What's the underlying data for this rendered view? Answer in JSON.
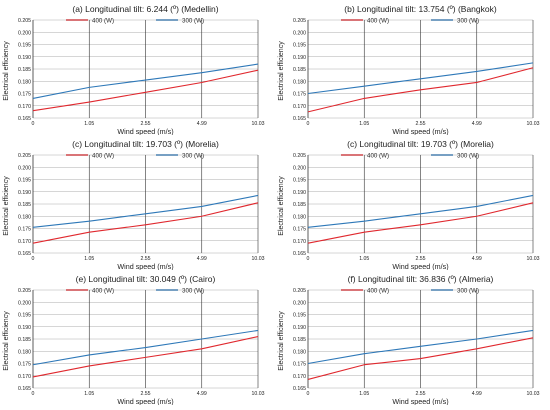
{
  "colors": {
    "s400": "#e0282e",
    "s300": "#2e78b8",
    "grid": "#333333",
    "axis": "#999999"
  },
  "chart_data": [
    {
      "type": "line",
      "title": "(a) Longitudinal tilt: 6.244 (º) (Medellin)",
      "xlabel": "Wind speed (m/s)",
      "ylabel": "Electrical efficiency",
      "categories": [
        "0",
        "1.05",
        "2.55",
        "4.99",
        "10.03"
      ],
      "ylim": [
        0.165,
        0.205
      ],
      "yticks": [
        "0.165",
        "0.170",
        "0.175",
        "0.180",
        "0.185",
        "0.190",
        "0.195",
        "0.200",
        "0.205"
      ],
      "legend_position": "top",
      "series": [
        {
          "name": "400 (W)",
          "values": [
            0.168,
            0.1715,
            0.1755,
            0.1795,
            0.1845
          ]
        },
        {
          "name": "300 (W)",
          "values": [
            0.173,
            0.1775,
            0.1805,
            0.1835,
            0.187
          ]
        }
      ]
    },
    {
      "type": "line",
      "title": "(b) Longitudinal tilt: 13.754 (º) (Bangkok)",
      "xlabel": "Wind speed (m/s)",
      "ylabel": "Electrical efficiency",
      "categories": [
        "0",
        "1.05",
        "2.55",
        "4.99",
        "10.03"
      ],
      "ylim": [
        0.165,
        0.205
      ],
      "yticks": [
        "0.165",
        "0.170",
        "0.175",
        "0.180",
        "0.185",
        "0.190",
        "0.195",
        "0.200",
        "0.205"
      ],
      "legend_position": "top",
      "series": [
        {
          "name": "400 (W)",
          "values": [
            0.1675,
            0.173,
            0.1765,
            0.1795,
            0.1855
          ]
        },
        {
          "name": "300 (W)",
          "values": [
            0.175,
            0.178,
            0.181,
            0.184,
            0.1875
          ]
        }
      ]
    },
    {
      "type": "line",
      "title": "(c) Longitudinal tilt: 19.703 (º) (Morelia)",
      "xlabel": "Wind speed (m/s)",
      "ylabel": "Electrical efficiency",
      "categories": [
        "0",
        "1.05",
        "2.55",
        "4.99",
        "10.03"
      ],
      "ylim": [
        0.165,
        0.205
      ],
      "yticks": [
        "0.165",
        "0.170",
        "0.175",
        "0.180",
        "0.185",
        "0.190",
        "0.195",
        "0.200",
        "0.205"
      ],
      "legend_position": "top",
      "series": [
        {
          "name": "400 (W)",
          "values": [
            0.169,
            0.1735,
            0.1765,
            0.18,
            0.1855
          ]
        },
        {
          "name": "300 (W)",
          "values": [
            0.1755,
            0.178,
            0.181,
            0.184,
            0.1885
          ]
        }
      ]
    },
    {
      "type": "line",
      "title": "(c) Longitudinal tilt: 19.703 (º) (Morelia)",
      "xlabel": "Wind speed (m/s)",
      "ylabel": "Electrical efficiency",
      "categories": [
        "0",
        "1.05",
        "2.55",
        "4.99",
        "10.03"
      ],
      "ylim": [
        0.165,
        0.205
      ],
      "yticks": [
        "0.165",
        "0.170",
        "0.175",
        "0.180",
        "0.185",
        "0.190",
        "0.195",
        "0.200",
        "0.205"
      ],
      "legend_position": "top",
      "series": [
        {
          "name": "400 (W)",
          "values": [
            0.169,
            0.1735,
            0.1765,
            0.18,
            0.1855
          ]
        },
        {
          "name": "300 (W)",
          "values": [
            0.1755,
            0.178,
            0.181,
            0.184,
            0.1885
          ]
        }
      ]
    },
    {
      "type": "line",
      "title": "(e) Longitudinal tilt: 30.049 (º) (Cairo)",
      "xlabel": "Wind speed (m/s)",
      "ylabel": "Electrical efficiency",
      "categories": [
        "0",
        "1.05",
        "2.55",
        "4.99",
        "10.03"
      ],
      "ylim": [
        0.165,
        0.205
      ],
      "yticks": [
        "0.165",
        "0.170",
        "0.175",
        "0.180",
        "0.185",
        "0.190",
        "0.195",
        "0.200",
        "0.205"
      ],
      "legend_position": "top",
      "series": [
        {
          "name": "400 (W)",
          "values": [
            0.1695,
            0.174,
            0.1775,
            0.181,
            0.186
          ]
        },
        {
          "name": "300 (W)",
          "values": [
            0.1745,
            0.1785,
            0.1815,
            0.185,
            0.1885
          ]
        }
      ]
    },
    {
      "type": "line",
      "title": "(f) Longitudinal tilt: 36.836 (º) (Almeria)",
      "xlabel": "Wind speed (m/s)",
      "ylabel": "Electrical efficiency",
      "categories": [
        "0",
        "1.05",
        "2.55",
        "4.99",
        "10.03"
      ],
      "ylim": [
        0.165,
        0.205
      ],
      "yticks": [
        "0.165",
        "0.170",
        "0.175",
        "0.180",
        "0.185",
        "0.190",
        "0.195",
        "0.200",
        "0.205"
      ],
      "legend_position": "top",
      "series": [
        {
          "name": "400 (W)",
          "values": [
            0.1685,
            0.1745,
            0.177,
            0.181,
            0.1855
          ]
        },
        {
          "name": "300 (W)",
          "values": [
            0.175,
            0.179,
            0.182,
            0.185,
            0.1885
          ]
        }
      ]
    }
  ]
}
